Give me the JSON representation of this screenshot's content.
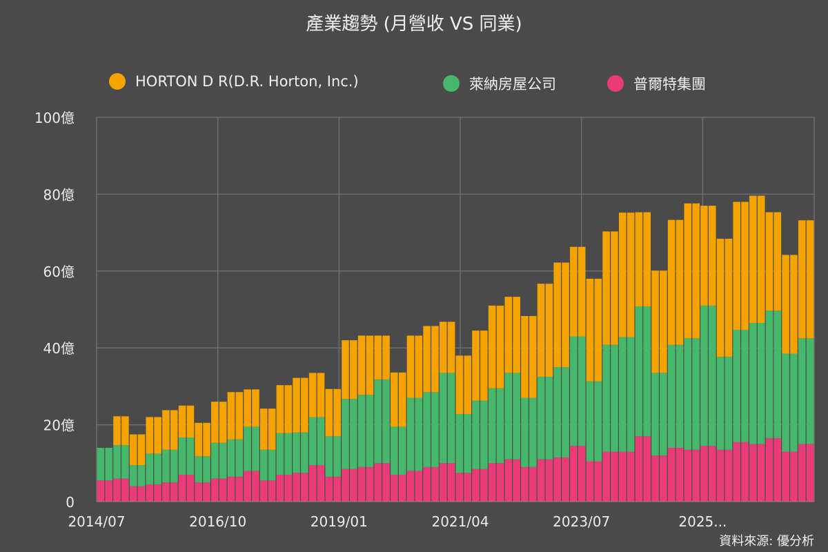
{
  "chart_data": {
    "type": "bar",
    "stacked": true,
    "title": "產業趨勢 (月營收 VS 同業)",
    "source": "資料來源: 優分析",
    "y_axis": {
      "min": 0,
      "max": 100,
      "step": 20,
      "tick_labels": [
        "0",
        "20億",
        "40億",
        "60億",
        "80億",
        "100億"
      ]
    },
    "x_axis": {
      "tick_labels": [
        "2014/07",
        "2016/10",
        "2019/01",
        "2021/04",
        "2023/07",
        "2025..."
      ]
    },
    "grid": true,
    "legend_position": "top",
    "series": [
      {
        "name": "普爾特集團",
        "color": "#ea3a78",
        "values": [
          5.5,
          6,
          4,
          4.5,
          5,
          7,
          5,
          6,
          6.5,
          8,
          5.5,
          7,
          7.5,
          9.5,
          6.5,
          8.5,
          9,
          10,
          7,
          8,
          9,
          10,
          7.5,
          8.5,
          10,
          11,
          9,
          11,
          11.5,
          14.5,
          10.5,
          13,
          13,
          17,
          12,
          14,
          13.5,
          14.5,
          13.5,
          15.5,
          15,
          16.5,
          13,
          15
        ]
      },
      {
        "name": "萊納房屋公司",
        "color": "#46b86b",
        "values": [
          8.5,
          8.7,
          5.5,
          8,
          8.5,
          9.7,
          6.8,
          9.3,
          9.7,
          11.5,
          8,
          10.8,
          10.5,
          12.5,
          10.5,
          18.2,
          18.8,
          21.8,
          12.5,
          19,
          19.5,
          23.5,
          15.3,
          17.8,
          19.5,
          22.5,
          18,
          21.5,
          23.5,
          28.5,
          20.8,
          27.8,
          29.8,
          33.8,
          21.5,
          26.8,
          29,
          36.5,
          24.2,
          29.2,
          31.5,
          33.2,
          25.5,
          27.5
        ]
      },
      {
        "name": "HORTON D R(D.R. Horton, Inc.)",
        "color": "#f5a300",
        "values": [
          0,
          7.5,
          8,
          9.5,
          10.3,
          8.3,
          8.7,
          10.7,
          12.3,
          9.7,
          10.7,
          12.5,
          14.2,
          11.5,
          12.3,
          15.3,
          15.4,
          11.4,
          14.1,
          16.2,
          17.2,
          13.3,
          15.2,
          18.2,
          21.5,
          19.8,
          21.3,
          24.2,
          27.2,
          23.3,
          26.7,
          29.5,
          32.4,
          24.5,
          26.6,
          32.5,
          35.1,
          26,
          30.7,
          33.3,
          33.1,
          25.6,
          25.7,
          30.7
        ]
      }
    ],
    "legend_order": [
      "HORTON D R(D.R. Horton, Inc.)",
      "萊納房屋公司",
      "普爾特集團"
    ]
  }
}
